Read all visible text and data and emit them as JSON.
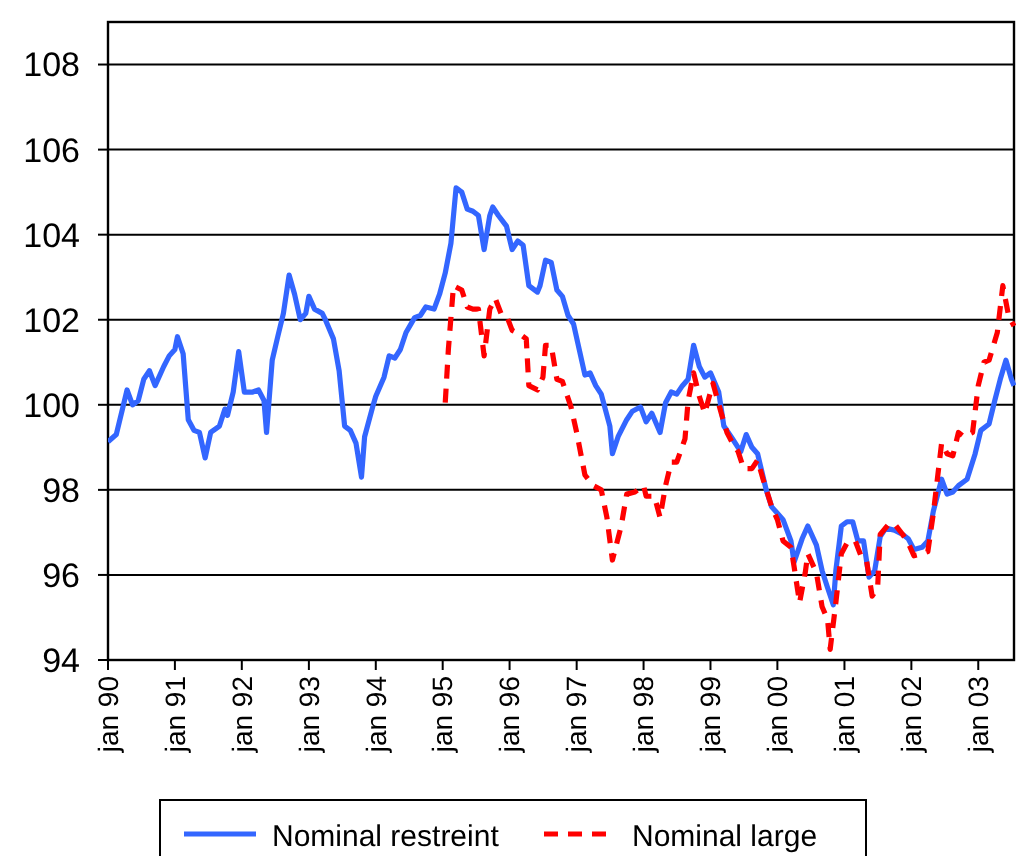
{
  "chart_data": {
    "type": "line",
    "xlim": [
      "1990-01-01",
      "2003-07-15"
    ],
    "ylim": [
      94,
      109
    ],
    "xticks": [
      {
        "value": "1990-01-01",
        "label": "jan 90"
      },
      {
        "value": "1991-01-01",
        "label": "jan 91"
      },
      {
        "value": "1992-01-01",
        "label": "jan 92"
      },
      {
        "value": "1993-01-01",
        "label": "jan 93"
      },
      {
        "value": "1994-01-01",
        "label": "jan 94"
      },
      {
        "value": "1995-01-01",
        "label": "jan 95"
      },
      {
        "value": "1996-01-01",
        "label": "jan 96"
      },
      {
        "value": "1997-01-01",
        "label": "jan 97"
      },
      {
        "value": "1998-01-01",
        "label": "jan 98"
      },
      {
        "value": "1999-01-01",
        "label": "jan 99"
      },
      {
        "value": "2000-01-01",
        "label": "jan 00"
      },
      {
        "value": "2001-01-01",
        "label": "jan 01"
      },
      {
        "value": "2002-01-01",
        "label": "jan 02"
      },
      {
        "value": "2003-01-01",
        "label": "jan 03"
      }
    ],
    "yticks": [
      94,
      96,
      98,
      100,
      102,
      104,
      106,
      108
    ],
    "grid": "y",
    "legend": "bottom",
    "series": [
      {
        "name": "Nominal restreint",
        "color": "#3366ff",
        "line_style": "solid",
        "x": [
          "1990-01-01",
          "1990-02-15",
          "1990-04-01",
          "1990-04-15",
          "1990-05-15",
          "1990-06-15",
          "1990-07-15",
          "1990-08-15",
          "1990-09-15",
          "1990-11-01",
          "1990-12-01",
          "1991-01-01",
          "1991-01-15",
          "1991-02-15",
          "1991-03-15",
          "1991-04-15",
          "1991-05-15",
          "1991-06-15",
          "1991-07-15",
          "1991-09-01",
          "1991-10-01",
          "1991-10-15",
          "1991-11-15",
          "1991-12-15",
          "1992-01-15",
          "1992-03-01",
          "1992-04-01",
          "1992-05-01",
          "1992-05-15",
          "1992-06-15",
          "1992-07-15",
          "1992-08-15",
          "1992-09-15",
          "1992-10-15",
          "1992-11-15",
          "1992-12-15",
          "1993-01-01",
          "1993-02-01",
          "1993-03-15",
          "1993-04-01",
          "1993-05-15",
          "1993-06-15",
          "1993-07-15",
          "1993-08-15",
          "1993-09-15",
          "1993-10-15",
          "1993-11-01",
          "1993-12-15",
          "1994-01-01",
          "1994-02-15",
          "1994-03-15",
          "1994-04-15",
          "1994-05-15",
          "1994-06-15",
          "1994-08-01",
          "1994-09-01",
          "1994-10-01",
          "1994-11-15",
          "1994-12-15",
          "1995-01-15",
          "1995-02-15",
          "1995-03-15",
          "1995-04-15",
          "1995-05-15",
          "1995-06-15",
          "1995-07-15",
          "1995-08-15",
          "1995-09-15",
          "1995-10-01",
          "1995-11-01",
          "1995-12-15",
          "1996-01-15",
          "1996-02-15",
          "1996-03-15",
          "1996-04-15",
          "1996-06-01",
          "1996-06-15",
          "1996-07-15",
          "1996-08-15",
          "1996-09-15",
          "1996-10-15",
          "1996-11-15",
          "1996-12-15",
          "1997-01-15",
          "1997-02-15",
          "1997-03-15",
          "1997-04-15",
          "1997-05-15",
          "1997-07-01",
          "1997-07-15",
          "1997-08-15",
          "1997-10-01",
          "1997-11-01",
          "1997-12-15",
          "1998-01-15",
          "1998-02-15",
          "1998-04-01",
          "1998-05-01",
          "1998-06-01",
          "1998-07-01",
          "1998-08-01",
          "1998-09-01",
          "1998-10-01",
          "1998-11-01",
          "1998-12-01",
          "1999-01-01",
          "1999-02-15",
          "1999-03-15",
          "1999-05-01",
          "1999-06-15",
          "1999-07-15",
          "1999-08-15",
          "1999-09-15",
          "1999-11-01",
          "1999-12-01",
          "2000-01-01",
          "2000-02-01",
          "2000-03-15",
          "2000-04-01",
          "2000-05-15",
          "2000-06-15",
          "2000-08-01",
          "2000-09-01",
          "2000-10-01",
          "2000-11-01",
          "2000-11-15",
          "2000-12-15",
          "2001-01-15",
          "2001-02-15",
          "2001-03-15",
          "2001-04-15",
          "2001-05-15",
          "2001-06-15",
          "2001-07-15",
          "2001-08-15",
          "2001-10-01",
          "2001-11-15",
          "2001-12-15",
          "2002-01-15",
          "2002-03-01",
          "2002-04-01",
          "2002-05-01",
          "2002-06-15",
          "2002-07-15",
          "2002-08-15",
          "2002-09-15",
          "2002-11-01",
          "2002-12-15",
          "2003-01-15",
          "2003-03-01",
          "2003-04-01",
          "2003-05-01",
          "2003-06-01",
          "2003-07-01",
          "2003-07-15"
        ],
        "values": [
          99.13,
          99.3,
          100.1,
          100.35,
          100.0,
          100.1,
          100.6,
          100.8,
          100.45,
          100.9,
          101.15,
          101.3,
          101.6,
          101.2,
          99.65,
          99.4,
          99.35,
          98.75,
          99.35,
          99.5,
          99.9,
          99.75,
          100.3,
          101.25,
          100.3,
          100.3,
          100.35,
          100.1,
          99.35,
          101.05,
          101.6,
          102.15,
          103.05,
          102.6,
          102.0,
          102.15,
          102.55,
          102.25,
          102.15,
          102.0,
          101.55,
          100.8,
          99.5,
          99.4,
          99.1,
          98.3,
          99.25,
          99.95,
          100.2,
          100.65,
          101.15,
          101.1,
          101.3,
          101.7,
          102.05,
          102.1,
          102.3,
          102.25,
          102.6,
          103.1,
          103.8,
          105.1,
          105.0,
          104.6,
          104.55,
          104.45,
          103.65,
          104.45,
          104.65,
          104.45,
          104.2,
          103.65,
          103.85,
          103.75,
          102.8,
          102.65,
          102.8,
          103.4,
          103.35,
          102.7,
          102.55,
          102.1,
          101.9,
          101.3,
          100.7,
          100.75,
          100.45,
          100.25,
          99.5,
          98.85,
          99.25,
          99.65,
          99.85,
          99.95,
          99.6,
          99.8,
          99.35,
          100.05,
          100.3,
          100.25,
          100.45,
          100.6,
          101.4,
          100.9,
          100.65,
          100.75,
          100.3,
          99.5,
          99.2,
          98.9,
          99.3,
          99.0,
          98.85,
          98.0,
          97.6,
          97.45,
          97.3,
          96.8,
          96.3,
          96.85,
          97.15,
          96.7,
          96.1,
          95.7,
          95.3,
          96.1,
          97.15,
          97.25,
          97.25,
          96.8,
          96.8,
          95.95,
          96.1,
          96.9,
          97.1,
          97.05,
          96.95,
          96.85,
          96.6,
          96.65,
          96.8,
          97.5,
          98.25,
          97.9,
          97.95,
          98.1,
          98.25,
          98.85,
          99.4,
          99.55,
          100.1,
          100.6,
          101.05,
          100.6,
          100.45
        ]
      },
      {
        "name": "Nominal large",
        "color": "#ff0000",
        "line_style": "dashed",
        "x": [
          "1995-01-15",
          "1995-02-01",
          "1995-03-01",
          "1995-04-15",
          "1995-05-15",
          "1995-06-15",
          "1995-07-15",
          "1995-08-15",
          "1995-09-15",
          "1995-10-15",
          "1995-11-15",
          "1995-12-15",
          "1996-01-15",
          "1996-03-01",
          "1996-04-01",
          "1996-04-15",
          "1996-06-01",
          "1996-07-01",
          "1996-07-15",
          "1996-08-15",
          "1996-09-15",
          "1996-10-15",
          "1996-12-01",
          "1997-01-01",
          "1997-02-15",
          "1997-04-01",
          "1997-05-15",
          "1997-06-15",
          "1997-07-15",
          "1997-09-01",
          "1997-10-01",
          "1997-11-15",
          "1998-01-01",
          "1998-01-15",
          "1998-03-01",
          "1998-04-01",
          "1998-05-01",
          "1998-06-01",
          "1998-07-01",
          "1998-08-15",
          "1998-09-01",
          "1998-10-01",
          "1998-11-01",
          "1998-12-01",
          "1999-01-01",
          "1999-01-15",
          "1999-03-01",
          "1999-04-01",
          "1999-05-01",
          "1999-06-01",
          "1999-07-01",
          "1999-08-15",
          "1999-09-15",
          "1999-10-15",
          "1999-12-01",
          "2000-01-01",
          "2000-02-01",
          "2000-03-15",
          "2000-04-01",
          "2000-05-01",
          "2000-06-01",
          "2000-06-15",
          "2000-08-01",
          "2000-09-01",
          "2000-10-01",
          "2000-10-15",
          "2000-11-15",
          "2000-12-15",
          "2001-01-15",
          "2001-03-01",
          "2001-04-01",
          "2001-05-01",
          "2001-06-01",
          "2001-07-01",
          "2001-07-15",
          "2001-09-01",
          "2001-10-01",
          "2001-11-15",
          "2001-12-15",
          "2002-01-15",
          "2002-03-01",
          "2002-04-01",
          "2002-05-01",
          "2002-06-15",
          "2002-07-15",
          "2002-08-15",
          "2002-09-15",
          "2002-10-15",
          "2002-12-01",
          "2003-01-01",
          "2003-02-01",
          "2003-03-01",
          "2003-04-15",
          "2003-05-15",
          "2003-06-15",
          "2003-07-15"
        ],
        "values": [
          100.05,
          101.3,
          102.8,
          102.7,
          102.3,
          102.25,
          102.25,
          101.15,
          102.25,
          102.5,
          102.15,
          102.1,
          101.75,
          101.65,
          101.55,
          100.45,
          100.35,
          100.65,
          101.4,
          101.4,
          100.6,
          100.55,
          99.95,
          99.35,
          98.35,
          98.1,
          98.0,
          97.35,
          96.35,
          97.15,
          97.9,
          97.95,
          98.1,
          97.85,
          97.85,
          97.35,
          98.1,
          98.65,
          98.65,
          99.2,
          100.1,
          100.75,
          100.2,
          99.8,
          100.3,
          100.5,
          99.8,
          99.35,
          99.1,
          98.9,
          98.5,
          98.5,
          98.7,
          98.25,
          97.6,
          97.3,
          96.8,
          96.65,
          96.2,
          95.35,
          96.05,
          96.5,
          96.05,
          95.25,
          94.95,
          94.25,
          95.35,
          96.5,
          96.75,
          96.8,
          96.45,
          96.35,
          95.5,
          95.7,
          96.95,
          97.2,
          97.2,
          96.95,
          96.75,
          96.45,
          96.5,
          96.55,
          97.45,
          99.1,
          98.85,
          98.8,
          99.35,
          99.25,
          99.35,
          100.45,
          101.0,
          101.05,
          101.7,
          102.8,
          102.1,
          101.85
        ]
      }
    ]
  }
}
